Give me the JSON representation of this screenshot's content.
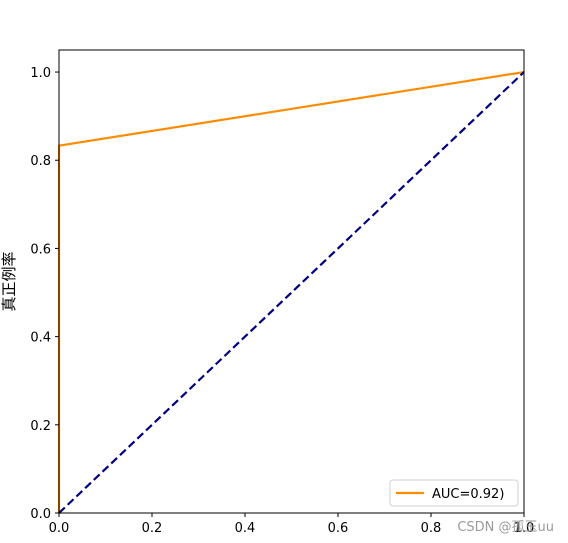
{
  "chart_data": {
    "type": "line",
    "title": "",
    "xlabel": "",
    "ylabel": "真正例率",
    "xlim": [
      0.0,
      1.0
    ],
    "ylim": [
      0.0,
      1.05
    ],
    "xticks": [
      0.0,
      0.2,
      0.4,
      0.6,
      0.8,
      1.0
    ],
    "yticks": [
      0.0,
      0.2,
      0.4,
      0.6,
      0.8,
      1.0
    ],
    "xtick_labels": [
      "0.0",
      "0.2",
      "0.4",
      "0.6",
      "0.8",
      "1.0"
    ],
    "ytick_labels": [
      "0.0",
      "0.2",
      "0.4",
      "0.6",
      "0.8",
      "1.0"
    ],
    "grid": false,
    "legend_position": "lower-right",
    "series": [
      {
        "name": "AUC=0.92)",
        "color": "#ff8c00",
        "style": "solid",
        "x": [
          0.0,
          0.0,
          1.0
        ],
        "y": [
          0.0,
          0.833,
          1.0
        ]
      },
      {
        "color": "#000080",
        "style": "dashed",
        "x": [
          0.0,
          1.0
        ],
        "y": [
          0.0,
          1.0
        ]
      }
    ]
  },
  "watermark": "CSDN @孤玉uu"
}
